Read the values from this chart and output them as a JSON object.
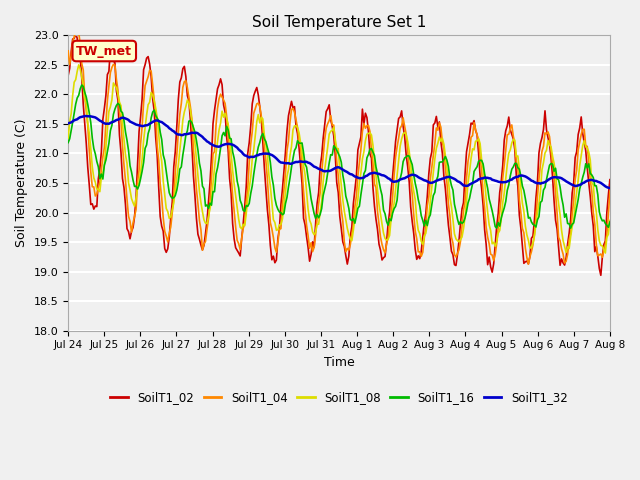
{
  "title": "Soil Temperature Set 1",
  "xlabel": "Time",
  "ylabel": "Soil Temperature (C)",
  "ylim": [
    18.0,
    23.0
  ],
  "yticks": [
    18.0,
    18.5,
    19.0,
    19.5,
    20.0,
    20.5,
    21.0,
    21.5,
    22.0,
    22.5,
    23.0
  ],
  "series_colors": {
    "SoilT1_02": "#cc0000",
    "SoilT1_04": "#ff8800",
    "SoilT1_08": "#dddd00",
    "SoilT1_16": "#00bb00",
    "SoilT1_32": "#0000cc"
  },
  "bg_color": "#f0f0f0",
  "plot_bg_color": "#f0f0f0",
  "annotation_text": "TW_met",
  "annotation_bg": "#ffffcc",
  "annotation_border": "#cc0000",
  "xtick_labels": [
    "Jul 24",
    "Jul 25",
    "Jul 26",
    "Jul 27",
    "Jul 28",
    "Jul 29",
    "Jul 30",
    "Jul 31",
    "Aug 1",
    "Aug 2",
    "Aug 3",
    "Aug 4",
    "Aug 5",
    "Aug 6",
    "Aug 7",
    "Aug 8"
  ],
  "legend_labels": [
    "SoilT1_02",
    "SoilT1_04",
    "SoilT1_08",
    "SoilT1_16",
    "SoilT1_32"
  ],
  "n_days": 15,
  "n_points": 360
}
